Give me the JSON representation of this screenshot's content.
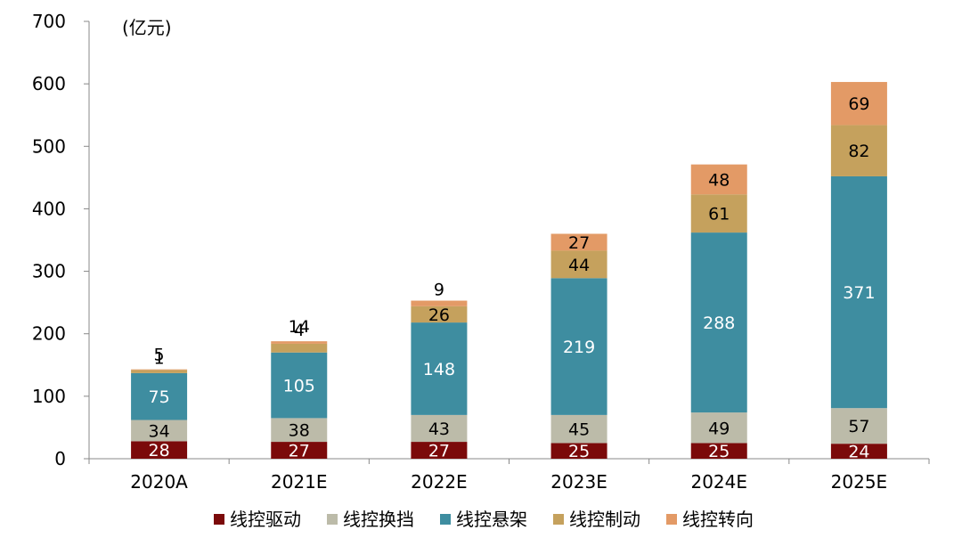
{
  "chart_data": {
    "type": "bar",
    "stacked": true,
    "unit_label": "(亿元)",
    "categories": [
      "2020A",
      "2021E",
      "2022E",
      "2023E",
      "2024E",
      "2025E"
    ],
    "ylim": [
      0,
      700
    ],
    "yticks": [
      0,
      100,
      200,
      300,
      400,
      500,
      600,
      700
    ],
    "grid": false,
    "legend_position": "bottom",
    "series": [
      {
        "name": "线控驱动",
        "color": "#7b0a0a",
        "values": [
          28,
          27,
          27,
          25,
          25,
          24
        ]
      },
      {
        "name": "线控换挡",
        "color": "#bcbba9",
        "values": [
          34,
          38,
          43,
          45,
          49,
          57
        ]
      },
      {
        "name": "线控悬架",
        "color": "#3e8da0",
        "values": [
          75,
          105,
          148,
          219,
          288,
          371
        ]
      },
      {
        "name": "线控制动",
        "color": "#c5a15d",
        "values": [
          5,
          14,
          26,
          44,
          61,
          82
        ]
      },
      {
        "name": "线控转向",
        "color": "#e39a66",
        "values": [
          1,
          4,
          9,
          27,
          48,
          69
        ]
      }
    ]
  }
}
